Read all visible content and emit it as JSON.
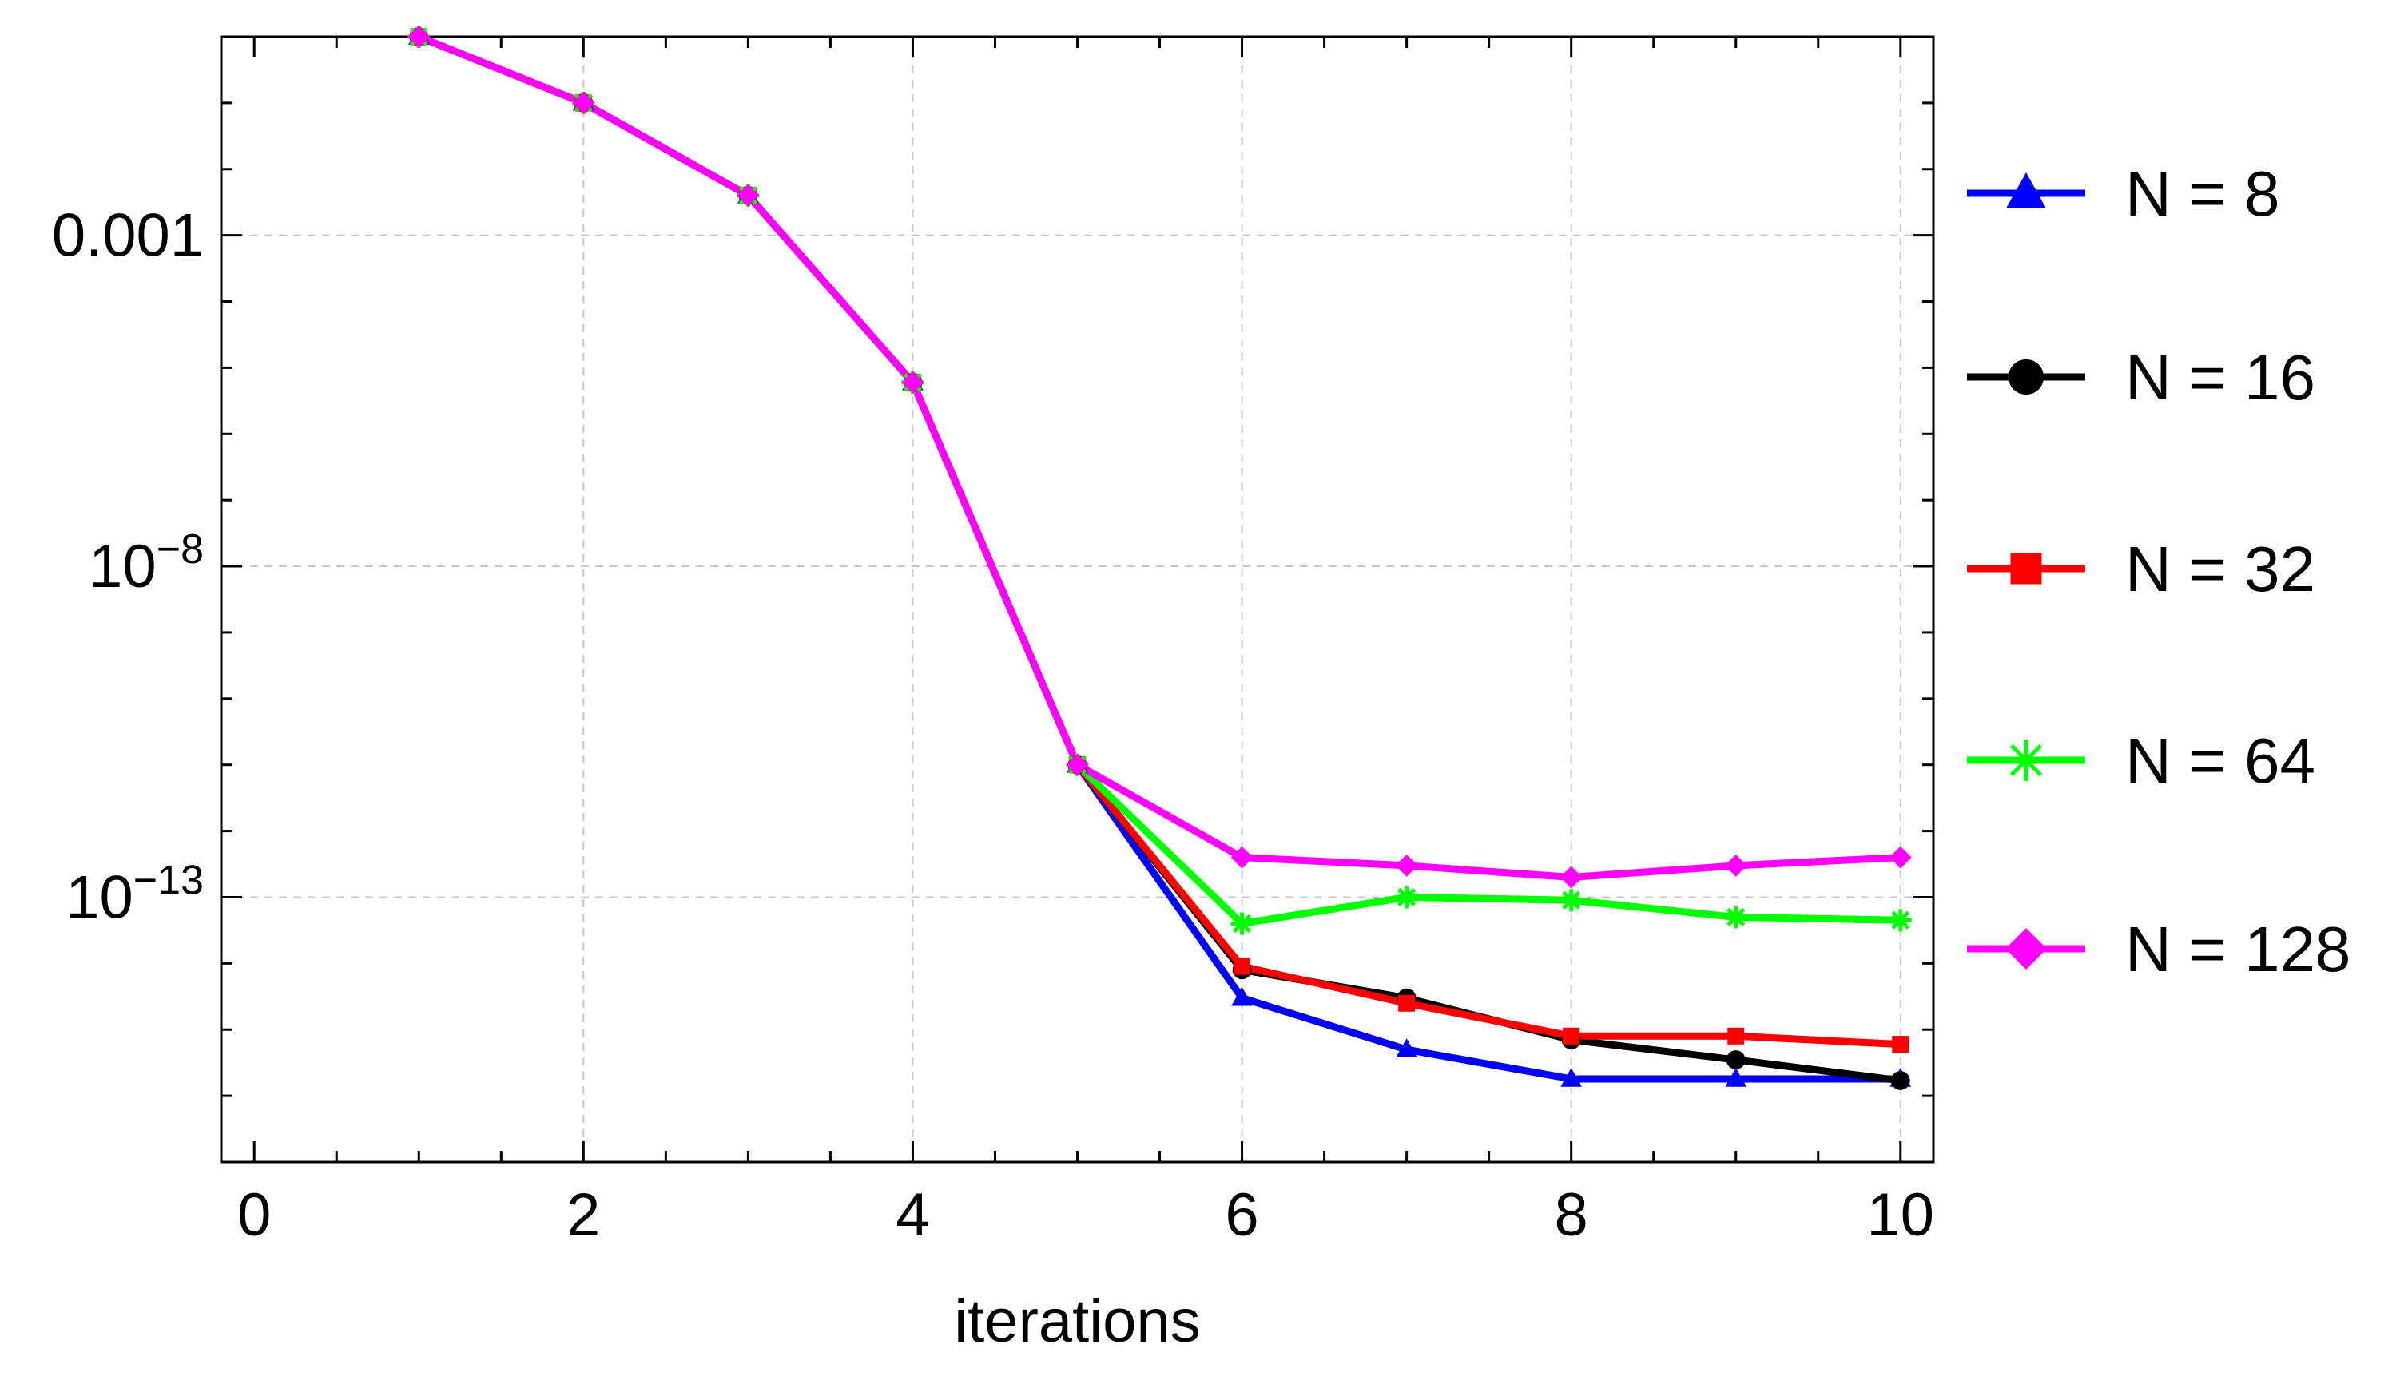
{
  "chart_data": {
    "type": "line",
    "title": "",
    "xlabel": "iterations",
    "ylabel": "",
    "y_scale": "log",
    "grid": true,
    "legend_position": "right",
    "xlim": [
      -0.2,
      10.2
    ],
    "ylim": [
      1e-17,
      1.0
    ],
    "x_ticks": [
      0,
      2,
      4,
      6,
      8,
      10
    ],
    "x_tick_labels": [
      "0",
      "2",
      "4",
      "6",
      "8",
      "10"
    ],
    "y_ticks": [
      {
        "value": 0.001,
        "base": "0.001",
        "exp": ""
      },
      {
        "value": 1e-08,
        "base": "10",
        "exp": "−8"
      },
      {
        "value": 1e-13,
        "base": "10",
        "exp": "−13"
      }
    ],
    "x": [
      1,
      2,
      3,
      4,
      5,
      6,
      7,
      8,
      9,
      10
    ],
    "series": [
      {
        "name": "N = 8",
        "color": "#0000ff",
        "marker": "triangle",
        "values": [
          1.0,
          0.1,
          0.004,
          6e-06,
          1e-11,
          3e-15,
          5e-16,
          1.8e-16,
          1.8e-16,
          1.8e-16
        ]
      },
      {
        "name": "N = 16",
        "color": "#000000",
        "marker": "circle",
        "values": [
          1.0,
          0.1,
          0.004,
          6e-06,
          1e-11,
          8e-15,
          3e-15,
          7e-16,
          3.5e-16,
          1.7e-16
        ]
      },
      {
        "name": "N = 32",
        "color": "#ff0000",
        "marker": "square",
        "values": [
          1.0,
          0.1,
          0.004,
          6e-06,
          1e-11,
          9e-15,
          2.5e-15,
          8e-16,
          8e-16,
          6e-16
        ]
      },
      {
        "name": "N = 64",
        "color": "#00ff00",
        "marker": "star",
        "values": [
          1.0,
          0.1,
          0.004,
          6e-06,
          1e-11,
          4e-14,
          1e-13,
          9e-14,
          5e-14,
          4.5e-14
        ]
      },
      {
        "name": "N = 128",
        "color": "#ff00ff",
        "marker": "diamond",
        "values": [
          1.0,
          0.1,
          0.004,
          6e-06,
          1e-11,
          4e-13,
          3e-13,
          2e-13,
          3e-13,
          4e-13
        ]
      }
    ]
  }
}
